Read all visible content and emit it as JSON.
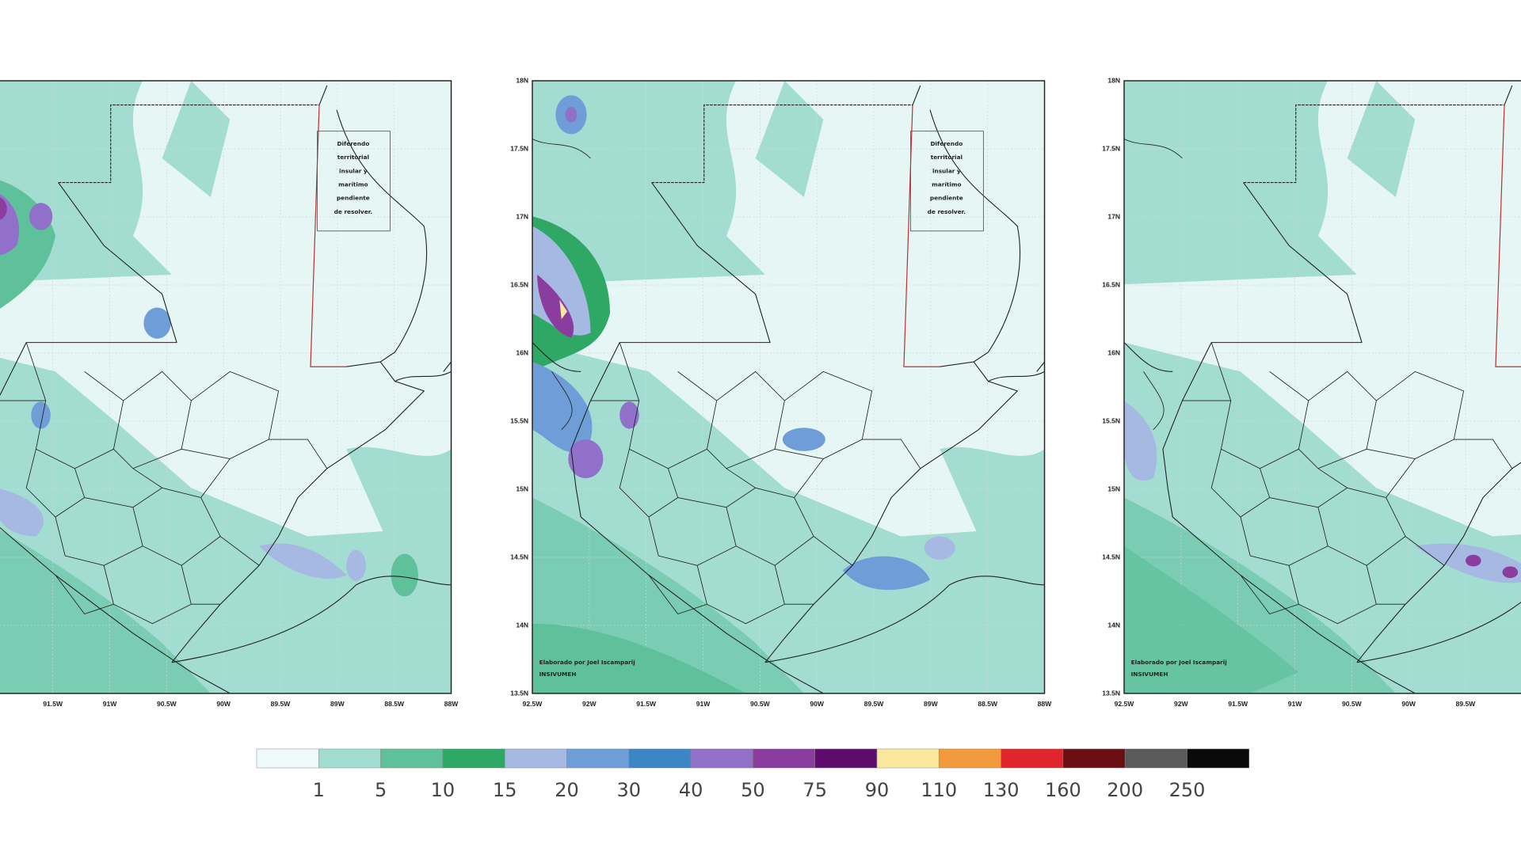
{
  "panels": [
    {
      "x_labels": [
        "91.5W",
        "91W",
        "90.5W",
        "90W",
        "89.5W",
        "89W",
        "88.5W",
        "88W"
      ],
      "note_box": [
        "Diferendo",
        "territorial",
        "insular y",
        "marítimo",
        "pendiente",
        "de resolver."
      ]
    },
    {
      "x_labels": [
        "92.5W",
        "92W",
        "91.5W",
        "91W",
        "90.5W",
        "90W",
        "89.5W",
        "89W",
        "88.5W",
        "88W"
      ],
      "y_labels": [
        "18N",
        "17.5N",
        "17N",
        "16.5N",
        "16N",
        "15.5N",
        "15N",
        "14.5N",
        "14N",
        "13.5N"
      ],
      "note_box": [
        "Diferendo",
        "territorial",
        "insular y",
        "marítimo",
        "pendiente",
        "de resolver."
      ],
      "credit": [
        "Elaborado por Joel Iscamparij",
        "INSIVUMEH"
      ]
    },
    {
      "x_labels": [
        "92.5W",
        "92W",
        "91.5W",
        "91W",
        "90.5W",
        "90W",
        "89.5W"
      ],
      "y_labels": [
        "18N",
        "17.5N",
        "17N",
        "16.5N",
        "16N",
        "15.5N",
        "15N",
        "14.5N",
        "14N",
        "13.5N"
      ],
      "credit": [
        "Elaborado por Joel Iscamparij",
        "INSIVUMEH"
      ]
    }
  ],
  "colorbar": {
    "colors": [
      "#eefafa",
      "#a3ddd2",
      "#5fc19c",
      "#2ea864",
      "#a6b9e2",
      "#6f9dd8",
      "#3d86c6",
      "#9070c8",
      "#8a3d9e",
      "#5e0b6e",
      "#f8e79c",
      "#f39a3c",
      "#e0262a",
      "#6b0f12",
      "#5a5a5a",
      "#0a0a0a"
    ],
    "labels": [
      "1",
      "5",
      "10",
      "15",
      "20",
      "30",
      "40",
      "50",
      "75",
      "90",
      "110",
      "130",
      "160",
      "200",
      "250"
    ]
  }
}
